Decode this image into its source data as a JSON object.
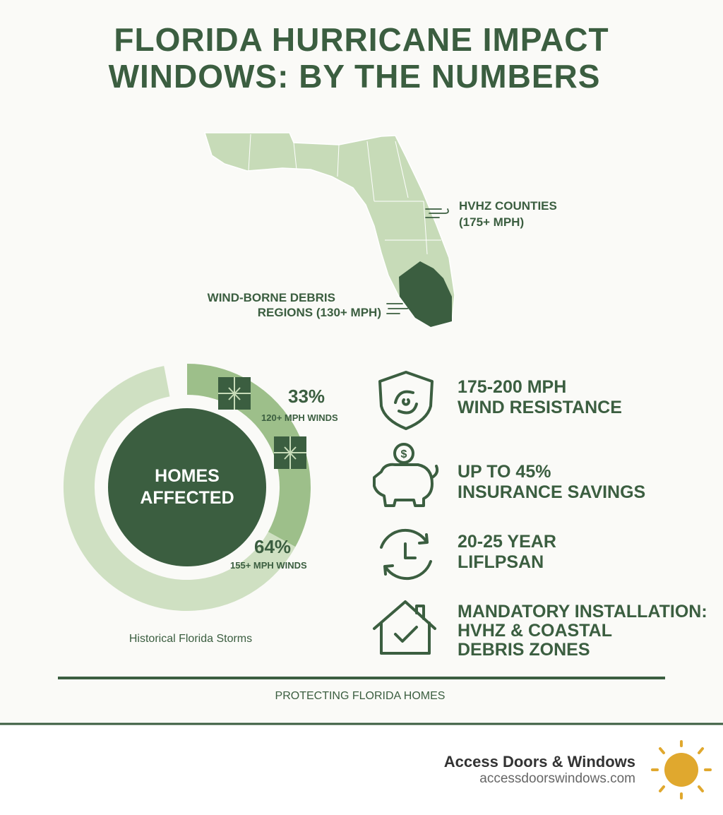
{
  "header": {
    "title": [
      "FLORIDA HURRICANE IMPACT",
      "WINDOWS: BY THE NUMBERS"
    ]
  },
  "map": {
    "labels": [
      {
        "lines": [
          "HVHZ COUNTIES",
          "(175+ MPH)"
        ]
      },
      {
        "lines": [
          "WIND-BORNE DEBRIS",
          "REGIONS (130+ MPH)"
        ]
      }
    ]
  },
  "donut": {
    "center": [
      "HOMES",
      "AFFECTED"
    ],
    "segments": [
      {
        "value": 33,
        "value_label": "33%",
        "caption": "120+ MPH WINDS"
      },
      {
        "value": 64,
        "value_label": "64%",
        "caption": "155+ MPH WINDS"
      }
    ],
    "caption": "Historical Florida Storms"
  },
  "features": [
    {
      "lines": [
        "175-200 MPH",
        "WIND RESISTANCE"
      ]
    },
    {
      "lines": [
        "UP TO 45%",
        "INSURANCE SAVINGS"
      ]
    },
    {
      "lines": [
        "20-25 YEAR",
        "LIFLPSAN"
      ]
    },
    {
      "lines": [
        "MANDATORY INSTALLATION:",
        "HVHZ & COASTAL",
        "DEBRIS ZONES"
      ]
    }
  ],
  "footer": {
    "tagline": "PROTECTING FLORIDA HOMES",
    "brand": "Access Doors & Windows",
    "url": "accessdoorswindows.com"
  }
}
